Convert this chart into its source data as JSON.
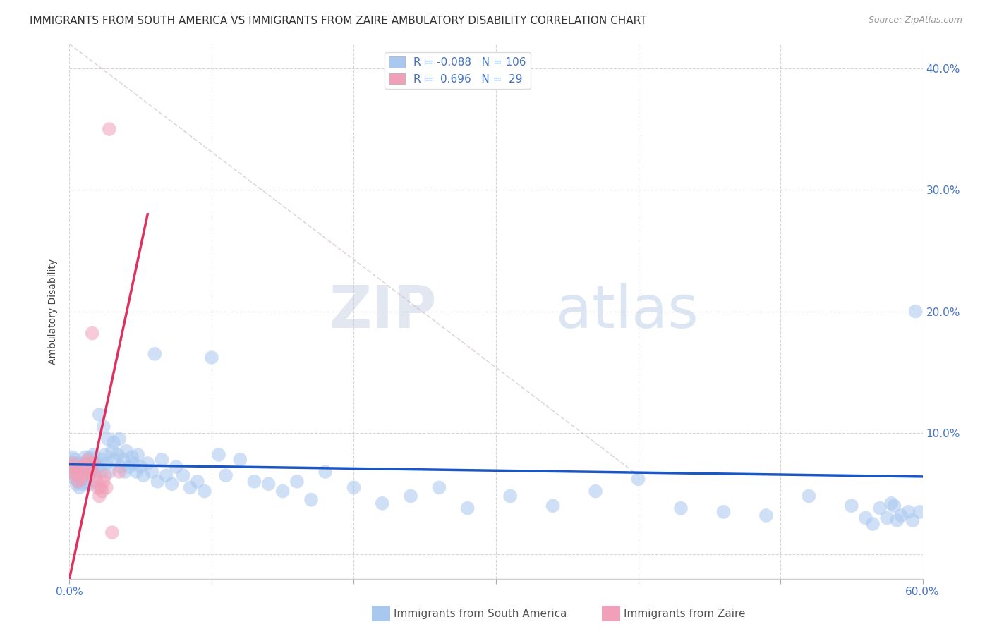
{
  "title": "IMMIGRANTS FROM SOUTH AMERICA VS IMMIGRANTS FROM ZAIRE AMBULATORY DISABILITY CORRELATION CHART",
  "source": "Source: ZipAtlas.com",
  "xlabel_label": "Immigrants from South America",
  "xlabel_label2": "Immigrants from Zaire",
  "ylabel": "Ambulatory Disability",
  "xlim": [
    0.0,
    0.6
  ],
  "ylim": [
    -0.02,
    0.42
  ],
  "blue_R": -0.088,
  "blue_N": 106,
  "pink_R": 0.696,
  "pink_N": 29,
  "blue_color": "#A8C8F0",
  "pink_color": "#F0A0B8",
  "blue_line_color": "#1A56C4",
  "pink_line_color": "#E03060",
  "diag_color": "#CCBBBB",
  "watermark_color": "#C8D8F0",
  "background_color": "#FFFFFF",
  "grid_color": "#DDDDDD",
  "right_axis_color": "#4472C4",
  "blue_scatter_x": [
    0.001,
    0.002,
    0.002,
    0.003,
    0.003,
    0.004,
    0.004,
    0.005,
    0.005,
    0.006,
    0.006,
    0.007,
    0.007,
    0.008,
    0.008,
    0.009,
    0.009,
    0.01,
    0.01,
    0.011,
    0.011,
    0.012,
    0.012,
    0.013,
    0.013,
    0.014,
    0.014,
    0.015,
    0.015,
    0.016,
    0.017,
    0.018,
    0.019,
    0.02,
    0.021,
    0.022,
    0.023,
    0.024,
    0.025,
    0.026,
    0.027,
    0.028,
    0.03,
    0.031,
    0.032,
    0.034,
    0.035,
    0.036,
    0.038,
    0.039,
    0.04,
    0.042,
    0.044,
    0.045,
    0.047,
    0.048,
    0.05,
    0.052,
    0.055,
    0.058,
    0.06,
    0.062,
    0.065,
    0.068,
    0.072,
    0.075,
    0.08,
    0.085,
    0.09,
    0.095,
    0.1,
    0.105,
    0.11,
    0.12,
    0.13,
    0.14,
    0.15,
    0.16,
    0.17,
    0.18,
    0.2,
    0.22,
    0.24,
    0.26,
    0.28,
    0.31,
    0.34,
    0.37,
    0.4,
    0.43,
    0.46,
    0.49,
    0.52,
    0.55,
    0.56,
    0.565,
    0.57,
    0.575,
    0.578,
    0.58,
    0.582,
    0.585,
    0.59,
    0.593,
    0.595,
    0.598
  ],
  "blue_scatter_y": [
    0.075,
    0.08,
    0.068,
    0.072,
    0.065,
    0.078,
    0.062,
    0.07,
    0.058,
    0.075,
    0.06,
    0.072,
    0.055,
    0.068,
    0.064,
    0.07,
    0.058,
    0.075,
    0.062,
    0.08,
    0.068,
    0.072,
    0.058,
    0.065,
    0.075,
    0.08,
    0.068,
    0.072,
    0.058,
    0.078,
    0.082,
    0.068,
    0.075,
    0.072,
    0.115,
    0.068,
    0.078,
    0.105,
    0.082,
    0.075,
    0.095,
    0.068,
    0.085,
    0.092,
    0.078,
    0.082,
    0.095,
    0.072,
    0.078,
    0.068,
    0.085,
    0.072,
    0.08,
    0.075,
    0.068,
    0.082,
    0.072,
    0.065,
    0.075,
    0.068,
    0.165,
    0.06,
    0.078,
    0.065,
    0.058,
    0.072,
    0.065,
    0.055,
    0.06,
    0.052,
    0.162,
    0.082,
    0.065,
    0.078,
    0.06,
    0.058,
    0.052,
    0.06,
    0.045,
    0.068,
    0.055,
    0.042,
    0.048,
    0.055,
    0.038,
    0.048,
    0.04,
    0.052,
    0.062,
    0.038,
    0.035,
    0.032,
    0.048,
    0.04,
    0.03,
    0.025,
    0.038,
    0.03,
    0.042,
    0.04,
    0.028,
    0.032,
    0.035,
    0.028,
    0.2,
    0.035
  ],
  "pink_scatter_x": [
    0.001,
    0.002,
    0.003,
    0.004,
    0.005,
    0.006,
    0.007,
    0.008,
    0.009,
    0.01,
    0.011,
    0.012,
    0.013,
    0.014,
    0.015,
    0.016,
    0.017,
    0.018,
    0.019,
    0.02,
    0.021,
    0.022,
    0.023,
    0.024,
    0.025,
    0.026,
    0.028,
    0.03,
    0.035
  ],
  "pink_scatter_y": [
    0.072,
    0.068,
    0.075,
    0.065,
    0.07,
    0.06,
    0.068,
    0.062,
    0.072,
    0.065,
    0.068,
    0.075,
    0.078,
    0.072,
    0.068,
    0.182,
    0.075,
    0.065,
    0.06,
    0.055,
    0.048,
    0.055,
    0.052,
    0.06,
    0.065,
    0.055,
    0.35,
    0.018,
    0.068
  ],
  "blue_line_x": [
    0.0,
    0.6
  ],
  "blue_line_y": [
    0.074,
    0.064
  ],
  "pink_line_x0": 0.0,
  "pink_line_x1": 0.055,
  "pink_line_y0": -0.02,
  "pink_line_y1": 0.28,
  "diag_line_x": [
    0.0,
    0.4
  ],
  "diag_line_y": [
    0.42,
    0.065
  ]
}
